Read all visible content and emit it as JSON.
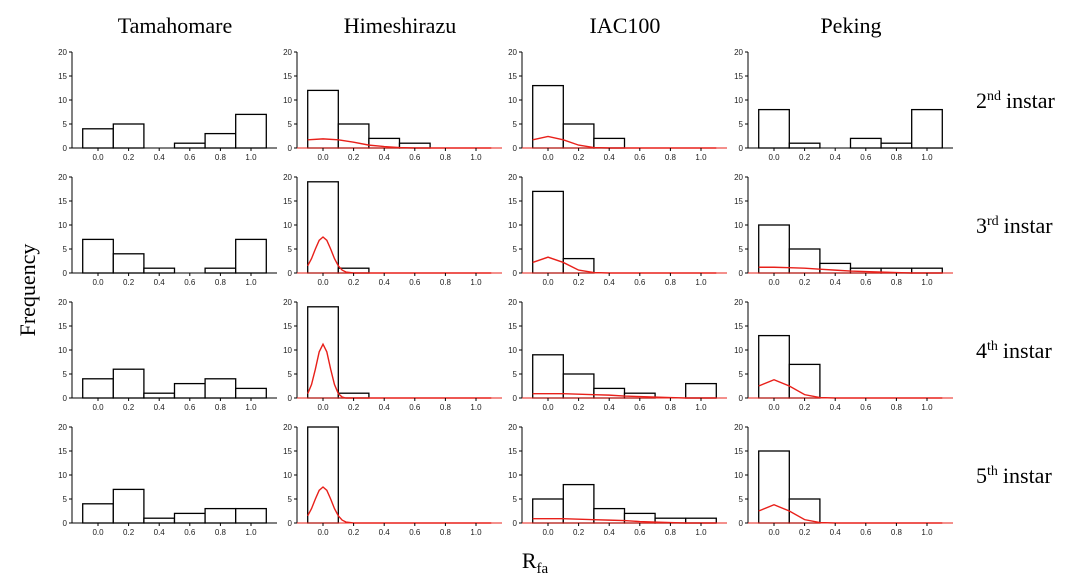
{
  "column_titles": [
    "Tamahomare",
    "Himeshirazu",
    "IAC100",
    "Peking"
  ],
  "row_labels": [
    {
      "base": "2",
      "sup": "nd",
      "tail": "instar"
    },
    {
      "base": "3",
      "sup": "rd",
      "tail": "instar"
    },
    {
      "base": "4",
      "sup": "th",
      "tail": "instar"
    },
    {
      "base": "5",
      "sup": "th",
      "tail": "instar"
    }
  ],
  "y_label": "Frequency",
  "x_label": {
    "base": "R",
    "sub": "fa"
  },
  "chart_data": [
    {
      "type": "histogram",
      "bins": [
        -0.1,
        0.1,
        0.3,
        0.5,
        0.7,
        0.9,
        1.1
      ],
      "values": [
        4,
        5,
        0,
        1,
        3,
        7
      ],
      "color": "#000000",
      "xlim": [
        -0.17,
        1.17
      ],
      "xticks": [
        {
          "value": 0,
          "label": "0.0"
        },
        0.2,
        0.4,
        0.6,
        0.8,
        {
          "value": 1,
          "label": "1.0"
        }
      ],
      "ylim": [
        0,
        20
      ],
      "yticks": [
        0,
        5,
        10,
        15,
        20
      ]
    },
    {
      "type": "histogram",
      "bins": [
        -0.1,
        0.1,
        0.3,
        0.5,
        0.7,
        0.9,
        1.1
      ],
      "values": [
        12,
        5,
        2,
        1,
        0,
        0
      ],
      "color": "#000000",
      "xlim": [
        -0.17,
        1.17
      ],
      "xticks": [
        {
          "value": 0,
          "label": "0.0"
        },
        0.2,
        0.4,
        0.6,
        0.8,
        {
          "value": 1,
          "label": "1.0"
        }
      ],
      "ylim": [
        0,
        20
      ],
      "yticks": [
        0,
        5,
        10,
        15,
        20
      ],
      "curve": {
        "color": "#e8201a",
        "x": [
          -0.1,
          0,
          0.1,
          0.2,
          0.3,
          0.4,
          0.5,
          0.6,
          0.7,
          0.8,
          0.9,
          1,
          1.1
        ],
        "values": [
          1.7,
          1.9,
          1.7,
          1.2,
          0.6,
          0.3,
          0.1,
          0,
          0,
          0,
          0,
          0,
          0
        ]
      }
    },
    {
      "type": "histogram",
      "bins": [
        -0.1,
        0.1,
        0.3,
        0.5,
        0.7,
        0.9,
        1.1
      ],
      "values": [
        13,
        5,
        2,
        0,
        0,
        0
      ],
      "color": "#000000",
      "xlim": [
        -0.17,
        1.17
      ],
      "xticks": [
        {
          "value": 0,
          "label": "0.0"
        },
        0.2,
        0.4,
        0.6,
        0.8,
        {
          "value": 1,
          "label": "1.0"
        }
      ],
      "ylim": [
        0,
        20
      ],
      "yticks": [
        0,
        5,
        10,
        15,
        20
      ],
      "curve": {
        "color": "#e8201a",
        "x": [
          -0.1,
          0,
          0.1,
          0.2,
          0.3,
          0.4,
          0.5,
          0.6,
          0.7,
          0.8,
          0.9,
          1,
          1.1
        ],
        "values": [
          1.7,
          2.4,
          1.7,
          0.6,
          0.1,
          0,
          0,
          0,
          0,
          0,
          0,
          0,
          0
        ]
      }
    },
    {
      "type": "histogram",
      "bins": [
        -0.1,
        0.1,
        0.3,
        0.5,
        0.7,
        0.9,
        1.1
      ],
      "values": [
        8,
        1,
        0,
        2,
        1,
        8
      ],
      "color": "#000000",
      "xlim": [
        -0.17,
        1.17
      ],
      "xticks": [
        {
          "value": 0,
          "label": "0.0"
        },
        0.2,
        0.4,
        0.6,
        0.8,
        {
          "value": 1,
          "label": "1.0"
        }
      ],
      "ylim": [
        0,
        20
      ],
      "yticks": [
        0,
        5,
        10,
        15,
        20
      ]
    },
    {
      "type": "histogram",
      "bins": [
        -0.1,
        0.1,
        0.3,
        0.5,
        0.7,
        0.9,
        1.1
      ],
      "values": [
        7,
        4,
        1,
        0,
        1,
        7
      ],
      "color": "#000000",
      "xlim": [
        -0.17,
        1.17
      ],
      "xticks": [
        {
          "value": 0,
          "label": "0.0"
        },
        0.2,
        0.4,
        0.6,
        0.8,
        {
          "value": 1,
          "label": "1.0"
        }
      ],
      "ylim": [
        0,
        20
      ],
      "yticks": [
        0,
        5,
        10,
        15,
        20
      ]
    },
    {
      "type": "histogram",
      "bins": [
        -0.1,
        0.1,
        0.3,
        0.5,
        0.7,
        0.9,
        1.1
      ],
      "values": [
        19,
        1,
        0,
        0,
        0,
        0
      ],
      "color": "#000000",
      "xlim": [
        -0.17,
        1.17
      ],
      "xticks": [
        {
          "value": 0,
          "label": "0.0"
        },
        0.2,
        0.4,
        0.6,
        0.8,
        {
          "value": 1,
          "label": "1.0"
        }
      ],
      "ylim": [
        0,
        20
      ],
      "yticks": [
        0,
        5,
        10,
        15,
        20
      ],
      "curve": {
        "color": "#e8201a",
        "x": [
          -0.1,
          -0.075,
          -0.05,
          -0.025,
          0,
          0.025,
          0.05,
          0.075,
          0.1,
          0.125,
          0.15,
          0.2,
          1.1
        ],
        "values": [
          1.5,
          3.0,
          5.0,
          6.8,
          7.5,
          6.8,
          5.0,
          3.0,
          1.5,
          0.6,
          0.2,
          0,
          0
        ]
      }
    },
    {
      "type": "histogram",
      "bins": [
        -0.1,
        0.1,
        0.3,
        0.5,
        0.7,
        0.9,
        1.1
      ],
      "values": [
        17,
        3,
        0,
        0,
        0,
        0
      ],
      "color": "#000000",
      "xlim": [
        -0.17,
        1.17
      ],
      "xticks": [
        {
          "value": 0,
          "label": "0.0"
        },
        0.2,
        0.4,
        0.6,
        0.8,
        {
          "value": 1,
          "label": "1.0"
        }
      ],
      "ylim": [
        0,
        20
      ],
      "yticks": [
        0,
        5,
        10,
        15,
        20
      ],
      "curve": {
        "color": "#e8201a",
        "x": [
          -0.1,
          0,
          0.1,
          0.2,
          0.3,
          0.4,
          0.5,
          0.6,
          0.7,
          0.8,
          0.9,
          1,
          1.1
        ],
        "values": [
          2.2,
          3.3,
          2.2,
          0.6,
          0.1,
          0,
          0,
          0,
          0,
          0,
          0,
          0,
          0
        ]
      }
    },
    {
      "type": "histogram",
      "bins": [
        -0.1,
        0.1,
        0.3,
        0.5,
        0.7,
        0.9,
        1.1
      ],
      "values": [
        10,
        5,
        2,
        1,
        1,
        1
      ],
      "color": "#000000",
      "xlim": [
        -0.17,
        1.17
      ],
      "xticks": [
        {
          "value": 0,
          "label": "0.0"
        },
        0.2,
        0.4,
        0.6,
        0.8,
        {
          "value": 1,
          "label": "1.0"
        }
      ],
      "ylim": [
        0,
        20
      ],
      "yticks": [
        0,
        5,
        10,
        15,
        20
      ],
      "curve": {
        "color": "#e8201a",
        "x": [
          -0.1,
          0,
          0.1,
          0.2,
          0.3,
          0.4,
          0.5,
          0.6,
          0.7,
          0.8,
          0.9,
          1,
          1.1
        ],
        "values": [
          1.2,
          1.2,
          1.1,
          1.0,
          0.8,
          0.6,
          0.4,
          0.3,
          0.2,
          0.1,
          0,
          0,
          0
        ]
      }
    },
    {
      "type": "histogram",
      "bins": [
        -0.1,
        0.1,
        0.3,
        0.5,
        0.7,
        0.9,
        1.1
      ],
      "values": [
        4,
        6,
        1,
        3,
        4,
        2
      ],
      "color": "#000000",
      "xlim": [
        -0.17,
        1.17
      ],
      "xticks": [
        {
          "value": 0,
          "label": "0.0"
        },
        0.2,
        0.4,
        0.6,
        0.8,
        {
          "value": 1,
          "label": "1.0"
        }
      ],
      "ylim": [
        0,
        20
      ],
      "yticks": [
        0,
        5,
        10,
        15,
        20
      ]
    },
    {
      "type": "histogram",
      "bins": [
        -0.1,
        0.1,
        0.3,
        0.5,
        0.7,
        0.9,
        1.1
      ],
      "values": [
        19,
        1,
        0,
        0,
        0,
        0
      ],
      "color": "#000000",
      "xlim": [
        -0.17,
        1.17
      ],
      "xticks": [
        {
          "value": 0,
          "label": "0.0"
        },
        0.2,
        0.4,
        0.6,
        0.8,
        {
          "value": 1,
          "label": "1.0"
        }
      ],
      "ylim": [
        0,
        20
      ],
      "yticks": [
        0,
        5,
        10,
        15,
        20
      ],
      "curve": {
        "color": "#e8201a",
        "x": [
          -0.1,
          -0.075,
          -0.05,
          -0.025,
          0,
          0.025,
          0.05,
          0.075,
          0.1,
          0.125,
          0.15,
          0.2,
          1.1
        ],
        "values": [
          0.9,
          2.8,
          6.0,
          9.6,
          11.2,
          9.6,
          6.0,
          2.8,
          0.9,
          0.2,
          0,
          0,
          0
        ]
      }
    },
    {
      "type": "histogram",
      "bins": [
        -0.1,
        0.1,
        0.3,
        0.5,
        0.7,
        0.9,
        1.1
      ],
      "values": [
        9,
        5,
        2,
        1,
        0,
        3
      ],
      "color": "#000000",
      "xlim": [
        -0.17,
        1.17
      ],
      "xticks": [
        {
          "value": 0,
          "label": "0.0"
        },
        0.2,
        0.4,
        0.6,
        0.8,
        {
          "value": 1,
          "label": "1.0"
        }
      ],
      "ylim": [
        0,
        20
      ],
      "yticks": [
        0,
        5,
        10,
        15,
        20
      ],
      "curve": {
        "color": "#e8201a",
        "x": [
          -0.1,
          0,
          0.1,
          0.2,
          0.3,
          0.4,
          0.5,
          0.6,
          0.7,
          0.8,
          0.9,
          1,
          1.1
        ],
        "values": [
          0.9,
          0.9,
          0.9,
          0.8,
          0.7,
          0.6,
          0.4,
          0.3,
          0.2,
          0.1,
          0,
          0,
          0
        ]
      }
    },
    {
      "type": "histogram",
      "bins": [
        -0.1,
        0.1,
        0.3,
        0.5,
        0.7,
        0.9,
        1.1
      ],
      "values": [
        13,
        7,
        0,
        0,
        0,
        0
      ],
      "color": "#000000",
      "xlim": [
        -0.17,
        1.17
      ],
      "xticks": [
        {
          "value": 0,
          "label": "0.0"
        },
        0.2,
        0.4,
        0.6,
        0.8,
        {
          "value": 1,
          "label": "1.0"
        }
      ],
      "ylim": [
        0,
        20
      ],
      "yticks": [
        0,
        5,
        10,
        15,
        20
      ],
      "curve": {
        "color": "#e8201a",
        "x": [
          -0.1,
          0,
          0.1,
          0.2,
          0.3,
          0.4,
          0.5,
          0.6,
          0.7,
          0.8,
          0.9,
          1,
          1.1
        ],
        "values": [
          2.5,
          3.8,
          2.5,
          0.7,
          0.1,
          0,
          0,
          0,
          0,
          0,
          0,
          0,
          0
        ]
      }
    },
    {
      "type": "histogram",
      "bins": [
        -0.1,
        0.1,
        0.3,
        0.5,
        0.7,
        0.9,
        1.1
      ],
      "values": [
        4,
        7,
        1,
        2,
        3,
        3
      ],
      "color": "#000000",
      "xlim": [
        -0.17,
        1.17
      ],
      "xticks": [
        {
          "value": 0,
          "label": "0.0"
        },
        0.2,
        0.4,
        0.6,
        0.8,
        {
          "value": 1,
          "label": "1.0"
        }
      ],
      "ylim": [
        0,
        20
      ],
      "yticks": [
        0,
        5,
        10,
        15,
        20
      ]
    },
    {
      "type": "histogram",
      "bins": [
        -0.1,
        0.1,
        0.3,
        0.5,
        0.7,
        0.9,
        1.1
      ],
      "values": [
        20,
        0,
        0,
        0,
        0,
        0
      ],
      "color": "#000000",
      "xlim": [
        -0.17,
        1.17
      ],
      "xticks": [
        {
          "value": 0,
          "label": "0.0"
        },
        0.2,
        0.4,
        0.6,
        0.8,
        {
          "value": 1,
          "label": "1.0"
        }
      ],
      "ylim": [
        0,
        20
      ],
      "yticks": [
        0,
        5,
        10,
        15,
        20
      ],
      "curve": {
        "color": "#e8201a",
        "x": [
          -0.1,
          -0.075,
          -0.05,
          -0.025,
          0,
          0.025,
          0.05,
          0.075,
          0.1,
          0.125,
          0.15,
          0.2,
          1.1
        ],
        "values": [
          1.5,
          3.0,
          5.0,
          6.8,
          7.5,
          6.8,
          5.0,
          3.0,
          1.5,
          0.6,
          0.2,
          0,
          0
        ]
      }
    },
    {
      "type": "histogram",
      "bins": [
        -0.1,
        0.1,
        0.3,
        0.5,
        0.7,
        0.9,
        1.1
      ],
      "values": [
        5,
        8,
        3,
        2,
        1,
        1
      ],
      "color": "#000000",
      "xlim": [
        -0.17,
        1.17
      ],
      "xticks": [
        {
          "value": 0,
          "label": "0.0"
        },
        0.2,
        0.4,
        0.6,
        0.8,
        {
          "value": 1,
          "label": "1.0"
        }
      ],
      "ylim": [
        0,
        20
      ],
      "yticks": [
        0,
        5,
        10,
        15,
        20
      ],
      "curve": {
        "color": "#e8201a",
        "x": [
          -0.1,
          0,
          0.1,
          0.2,
          0.3,
          0.4,
          0.5,
          0.6,
          0.7,
          0.8,
          0.9,
          1,
          1.1
        ],
        "values": [
          0.9,
          0.9,
          0.9,
          0.8,
          0.7,
          0.6,
          0.5,
          0.3,
          0.2,
          0.1,
          0,
          0,
          0
        ]
      }
    },
    {
      "type": "histogram",
      "bins": [
        -0.1,
        0.1,
        0.3,
        0.5,
        0.7,
        0.9,
        1.1
      ],
      "values": [
        15,
        5,
        0,
        0,
        0,
        0
      ],
      "color": "#000000",
      "xlim": [
        -0.17,
        1.17
      ],
      "xticks": [
        {
          "value": 0,
          "label": "0.0"
        },
        0.2,
        0.4,
        0.6,
        0.8,
        {
          "value": 1,
          "label": "1.0"
        }
      ],
      "ylim": [
        0,
        20
      ],
      "yticks": [
        0,
        5,
        10,
        15,
        20
      ],
      "curve": {
        "color": "#e8201a",
        "x": [
          -0.1,
          0,
          0.1,
          0.2,
          0.3,
          0.4,
          0.5,
          0.6,
          0.7,
          0.8,
          0.9,
          1,
          1.1
        ],
        "values": [
          2.5,
          3.8,
          2.5,
          0.7,
          0.1,
          0,
          0,
          0,
          0,
          0,
          0,
          0,
          0
        ]
      }
    }
  ]
}
